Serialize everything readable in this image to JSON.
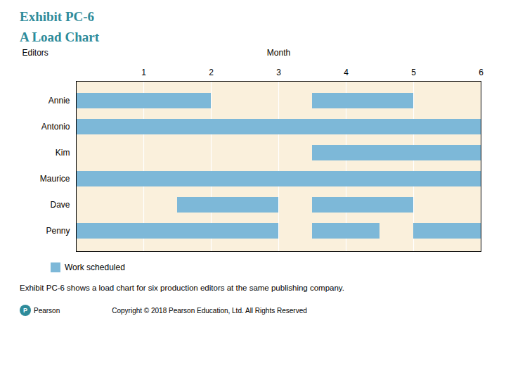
{
  "chart_data": {
    "type": "gantt",
    "orientation": "horizontal",
    "title": "Exhibit PC-6",
    "subtitle": "A Load Chart",
    "x_label": "Month",
    "y_label": "Editors",
    "categories": [
      "Annie",
      "Antonio",
      "Kim",
      "Maurice",
      "Dave",
      "Penny"
    ],
    "series": [
      {
        "name": "Work scheduled",
        "color": "#7DB8D8",
        "values": [
          [
            [
              0,
              2.0
            ],
            [
              3.5,
              5.0
            ]
          ],
          [
            [
              0,
              6.0
            ]
          ],
          [
            [
              3.5,
              6.0
            ]
          ],
          [
            [
              0,
              6.0
            ]
          ],
          [
            [
              1.5,
              3.0
            ],
            [
              3.5,
              5.0
            ]
          ],
          [
            [
              0,
              3.0
            ],
            [
              3.5,
              4.5
            ],
            [
              5.0,
              6.0
            ]
          ]
        ]
      }
    ],
    "xlim": [
      0,
      6
    ],
    "xticks": [
      1,
      2,
      3,
      4,
      5,
      6
    ],
    "grid": true,
    "legend": "lower left",
    "annotations": [
      "Exhibit PC-6 shows a load chart for six production editors at the same publishing company.",
      "Copyright © 2018 Pearson Education, Ltd. All Rights Reserved",
      "P",
      "Pearson"
    ]
  }
}
